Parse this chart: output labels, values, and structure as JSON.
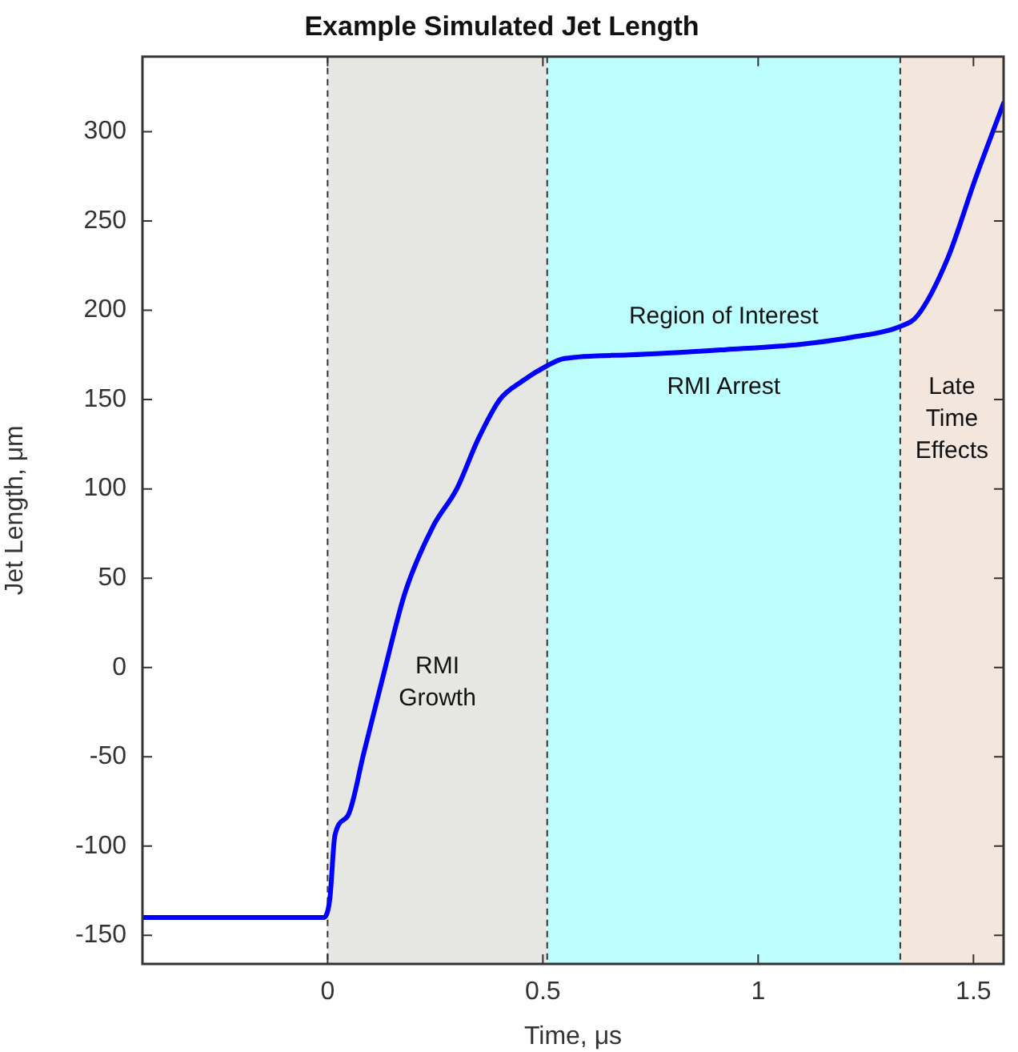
{
  "chart_data": {
    "type": "line",
    "title": "Example Simulated Jet Length",
    "xlabel": "Time, μs",
    "ylabel": "Jet Length, μm",
    "x": [
      -0.43,
      -0.01,
      0.005,
      0.017,
      0.047,
      0.084,
      0.134,
      0.18,
      0.245,
      0.3,
      0.35,
      0.4,
      0.45,
      0.51,
      0.55,
      0.7,
      0.925,
      1.1,
      1.22,
      1.33,
      1.37,
      1.44,
      1.505,
      1.57
    ],
    "series": [
      {
        "color": "#0000ff",
        "values": [
          -140,
          -140,
          -130,
          -94,
          -83,
          -48,
          0,
          42,
          79,
          100,
          128,
          150,
          160,
          169,
          173,
          175,
          178,
          181,
          185,
          191,
          197,
          229,
          274,
          316
        ]
      }
    ],
    "xlim": [
      -0.43,
      1.57
    ],
    "xticks": [
      0,
      0.5,
      1,
      1.5
    ],
    "ylim": [
      -166,
      342
    ],
    "yticks": [
      -150,
      -100,
      -50,
      0,
      50,
      100,
      150,
      200,
      250,
      300
    ],
    "bands": [
      {
        "axis": "x",
        "from": 0,
        "to": 0.51,
        "color": "#e6e6e3",
        "label": "RMI\nGrowth"
      },
      {
        "axis": "x",
        "from": 0.51,
        "to": 1.33,
        "color": "#bcfdfd",
        "label": "Region of Interest"
      },
      {
        "axis": "x",
        "from": 1.33,
        "to": 1.57,
        "color": "#f2e6dd",
        "label": "Late\nTime\nEffects"
      }
    ],
    "ref_lines": [
      {
        "axis": "x",
        "value": 0,
        "line_style": "dashed",
        "color": "#333333"
      },
      {
        "axis": "x",
        "value": 0.51,
        "line_style": "dashed",
        "color": "#333333"
      },
      {
        "axis": "x",
        "value": 1.33,
        "line_style": "dashed",
        "color": "#333333"
      }
    ],
    "annotations": [
      "RMI Arrest"
    ],
    "grid": false,
    "legend": false,
    "marker": "none",
    "line_style": "solid"
  }
}
